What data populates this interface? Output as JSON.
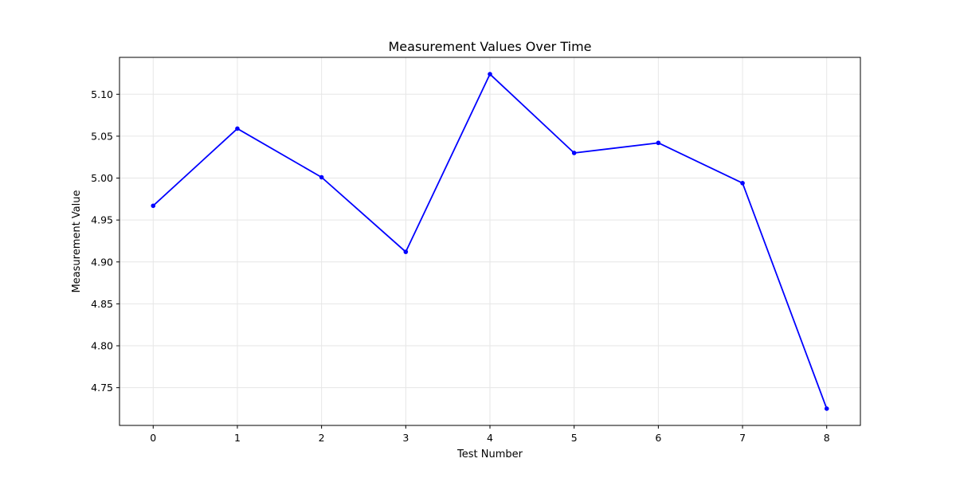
{
  "chart_data": {
    "type": "line",
    "title": "Measurement Values Over Time",
    "xlabel": "Test Number",
    "ylabel": "Measurement Value",
    "x": [
      0,
      1,
      2,
      3,
      4,
      5,
      6,
      7,
      8
    ],
    "series": [
      {
        "values": [
          4.967,
          5.059,
          5.001,
          4.912,
          5.124,
          5.03,
          5.042,
          4.994,
          4.725
        ]
      }
    ],
    "xlim": [
      -0.4,
      8.4
    ],
    "ylim": [
      4.705,
      5.144
    ],
    "xticks": [
      0,
      1,
      2,
      3,
      4,
      5,
      6,
      7,
      8
    ],
    "xtick_labels": [
      "0",
      "1",
      "2",
      "3",
      "4",
      "5",
      "6",
      "7",
      "8"
    ],
    "yticks": [
      4.75,
      4.8,
      4.85,
      4.9,
      4.95,
      5.0,
      5.05,
      5.1
    ],
    "ytick_labels": [
      "4.75",
      "4.80",
      "4.85",
      "4.90",
      "4.95",
      "5.00",
      "5.05",
      "5.10"
    ],
    "grid": true,
    "line_color": "#0000ff",
    "marker": "circle",
    "grid_color": "#e6e6e6"
  }
}
